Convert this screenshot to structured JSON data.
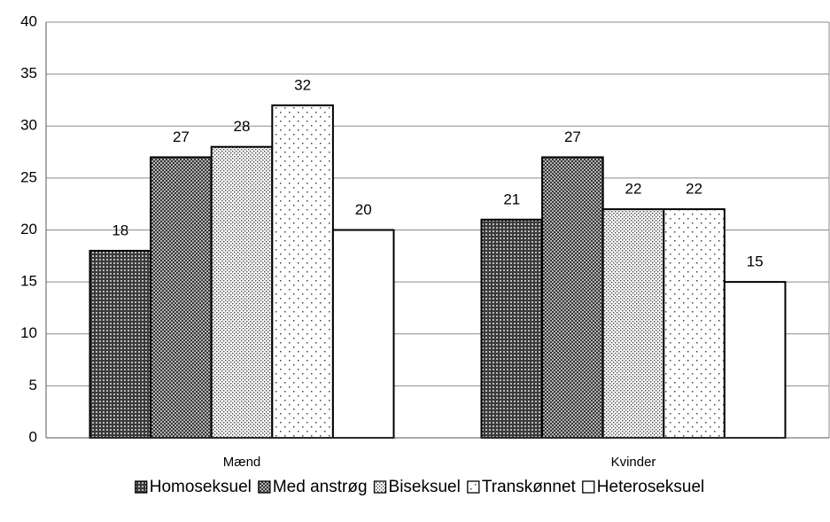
{
  "chart_data": {
    "type": "bar",
    "categories": [
      "Mænd",
      "Kvinder"
    ],
    "series": [
      {
        "name": "Homoseksuel",
        "color": "#555555",
        "pattern": "dark-grid",
        "values": [
          18,
          21
        ]
      },
      {
        "name": "Med anstrøg",
        "color": "#999999",
        "pattern": "mid-grid",
        "values": [
          27,
          27
        ]
      },
      {
        "name": "Biseksuel",
        "color": "#cccccc",
        "pattern": "dense-dots",
        "values": [
          28,
          22
        ]
      },
      {
        "name": "Transkønnet",
        "color": "#eeeeee",
        "pattern": "sparse-dots",
        "values": [
          32,
          22
        ]
      },
      {
        "name": "Heteroseksuel",
        "color": "#ffffff",
        "pattern": "none",
        "values": [
          20,
          15
        ]
      }
    ],
    "ylim": [
      0,
      40
    ],
    "yticks": [
      0,
      5,
      10,
      15,
      20,
      25,
      30,
      35,
      40
    ],
    "grid": true,
    "legend": "bottom"
  }
}
